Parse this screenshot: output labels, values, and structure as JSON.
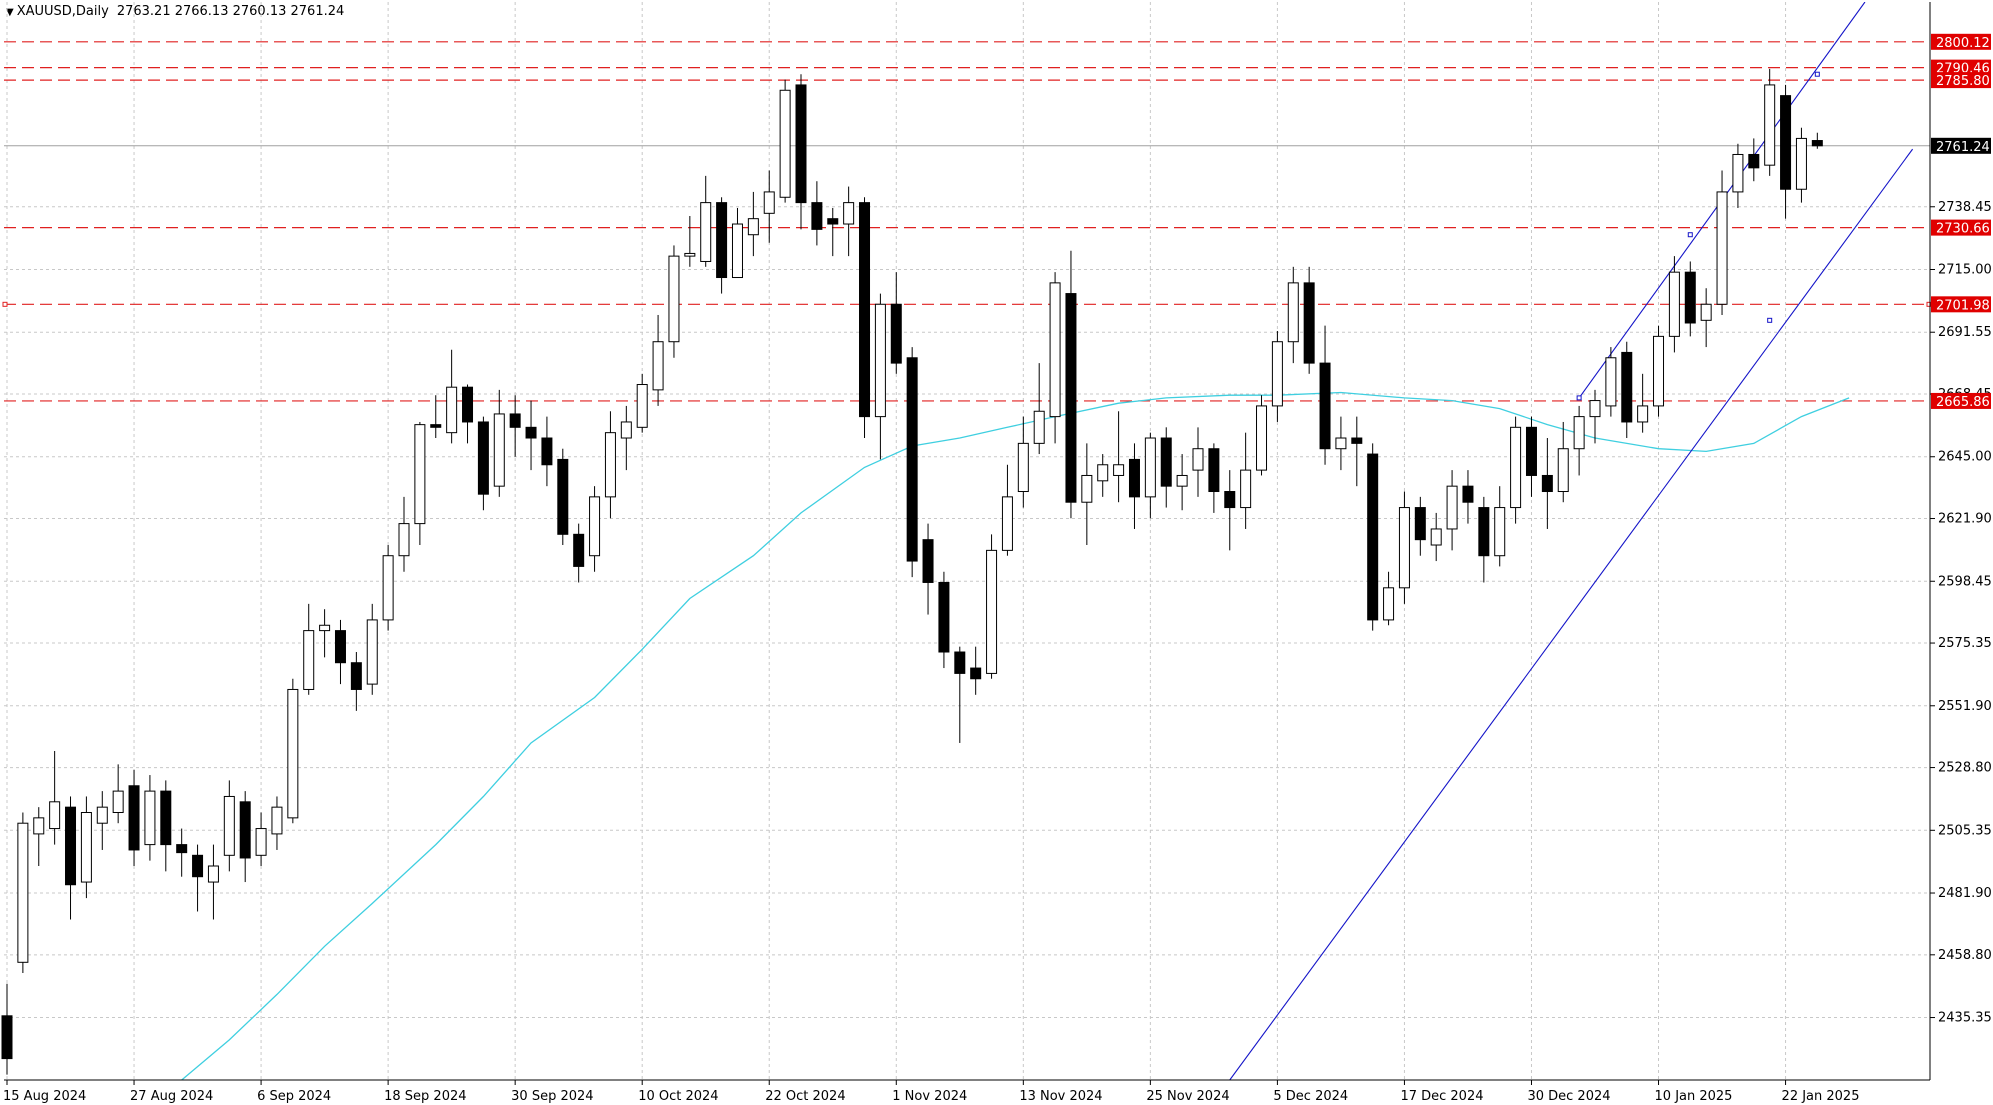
{
  "header": {
    "menu_icon": "triangle-down-icon",
    "symbol_timeframe": "XAUUSD,Daily",
    "ohlc": "2763.21 2766.13 2760.13 2761.24"
  },
  "colors": {
    "background": "#ffffff",
    "grid": "#c8c8c8",
    "bull_body": "#ffffff",
    "bear_body": "#000000",
    "candle_outline": "#000000",
    "moving_average": "#3fcfe0",
    "channel": "#1414c8",
    "level_line": "#e02020",
    "level_label_bg": "#e00000",
    "current_price_bg": "#000000"
  },
  "chart_data": {
    "type": "candlestick",
    "symbol": "XAUUSD",
    "timeframe": "Daily",
    "ylim": [
      2412,
      2815
    ],
    "y_ticks": [
      "2435.35",
      "2458.80",
      "2481.90",
      "2505.35",
      "2528.80",
      "2551.90",
      "2575.35",
      "2598.45",
      "2621.90",
      "2645.00",
      "2668.45",
      "2691.55",
      "2715.00",
      "2738.45"
    ],
    "x_ticks": [
      {
        "label": "15 Aug 2024",
        "index": 0
      },
      {
        "label": "27 Aug 2024",
        "index": 8
      },
      {
        "label": "6 Sep 2024",
        "index": 16
      },
      {
        "label": "18 Sep 2024",
        "index": 24
      },
      {
        "label": "30 Sep 2024",
        "index": 32
      },
      {
        "label": "10 Oct 2024",
        "index": 40
      },
      {
        "label": "22 Oct 2024",
        "index": 48
      },
      {
        "label": "1 Nov 2024",
        "index": 56
      },
      {
        "label": "13 Nov 2024",
        "index": 64
      },
      {
        "label": "25 Nov 2024",
        "index": 72
      },
      {
        "label": "5 Dec 2024",
        "index": 80
      },
      {
        "label": "17 Dec 2024",
        "index": 88
      },
      {
        "label": "30 Dec 2024",
        "index": 96
      },
      {
        "label": "10 Jan 2025",
        "index": 104
      },
      {
        "label": "22 Jan 2025",
        "index": 112
      }
    ],
    "current_price": 2761.24,
    "levels": [
      {
        "label": "2800.12",
        "value": 2800.12
      },
      {
        "label": "2790.46",
        "value": 2790.46
      },
      {
        "label": "2785.80",
        "value": 2785.8
      },
      {
        "label": "2730.66",
        "value": 2730.66
      },
      {
        "label": "2701.98",
        "value": 2701.98
      },
      {
        "label": "2665.86",
        "value": 2665.86
      }
    ],
    "channel": {
      "lower": {
        "from": [
          77,
          2412
        ],
        "to": [
          120,
          2760
        ]
      },
      "upper": {
        "from": [
          99,
          2667
        ],
        "to": [
          117,
          2815
        ]
      },
      "anchors": [
        [
          99,
          2667
        ],
        [
          106,
          2728
        ],
        [
          111,
          2696
        ],
        [
          114,
          2788
        ]
      ]
    },
    "moving_average": [
      [
        11,
        2412
      ],
      [
        14,
        2427
      ],
      [
        17,
        2444
      ],
      [
        20,
        2462
      ],
      [
        23,
        2478
      ],
      [
        27,
        2500
      ],
      [
        30,
        2518
      ],
      [
        33,
        2538
      ],
      [
        37,
        2555
      ],
      [
        40,
        2573
      ],
      [
        43,
        2592
      ],
      [
        47,
        2608
      ],
      [
        50,
        2624
      ],
      [
        54,
        2641
      ],
      [
        57,
        2649
      ],
      [
        60,
        2652
      ],
      [
        63,
        2656
      ],
      [
        66,
        2660
      ],
      [
        70,
        2665
      ],
      [
        73,
        2667
      ],
      [
        77,
        2668
      ],
      [
        80,
        2668
      ],
      [
        84,
        2669
      ],
      [
        88,
        2667
      ],
      [
        91,
        2666
      ],
      [
        94,
        2663
      ],
      [
        97,
        2657
      ],
      [
        100,
        2652
      ],
      [
        104,
        2648
      ],
      [
        107,
        2647
      ],
      [
        110,
        2650
      ],
      [
        113,
        2660
      ],
      [
        116,
        2667
      ]
    ],
    "candles": [
      [
        2436,
        2420,
        2448,
        2414
      ],
      [
        2456,
        2508,
        2512,
        2452
      ],
      [
        2504,
        2510,
        2514,
        2492
      ],
      [
        2506,
        2516,
        2535,
        2500
      ],
      [
        2514,
        2485,
        2518,
        2472
      ],
      [
        2486,
        2512,
        2518,
        2480
      ],
      [
        2508,
        2514,
        2520,
        2498
      ],
      [
        2512,
        2520,
        2530,
        2508
      ],
      [
        2522,
        2498,
        2528,
        2492
      ],
      [
        2500,
        2520,
        2526,
        2494
      ],
      [
        2520,
        2500,
        2524,
        2490
      ],
      [
        2500,
        2497,
        2506,
        2488
      ],
      [
        2496,
        2488,
        2500,
        2475
      ],
      [
        2486,
        2492,
        2500,
        2472
      ],
      [
        2496,
        2518,
        2524,
        2490
      ],
      [
        2516,
        2495,
        2520,
        2486
      ],
      [
        2496,
        2506,
        2512,
        2492
      ],
      [
        2504,
        2514,
        2518,
        2498
      ],
      [
        2510,
        2558,
        2562,
        2508
      ],
      [
        2558,
        2580,
        2590,
        2556
      ],
      [
        2580,
        2582,
        2588,
        2570
      ],
      [
        2580,
        2568,
        2584,
        2560
      ],
      [
        2568,
        2558,
        2572,
        2550
      ],
      [
        2560,
        2584,
        2590,
        2556
      ],
      [
        2584,
        2608,
        2612,
        2580
      ],
      [
        2608,
        2620,
        2630,
        2602
      ],
      [
        2620,
        2657,
        2658,
        2612
      ],
      [
        2657,
        2656,
        2668,
        2652
      ],
      [
        2654,
        2671,
        2685,
        2650
      ],
      [
        2671,
        2658,
        2672,
        2650
      ],
      [
        2658,
        2631,
        2660,
        2625
      ],
      [
        2634,
        2661,
        2670,
        2630
      ],
      [
        2661,
        2656,
        2668,
        2645
      ],
      [
        2656,
        2652,
        2666,
        2640
      ],
      [
        2652,
        2642,
        2660,
        2634
      ],
      [
        2644,
        2616,
        2648,
        2612
      ],
      [
        2616,
        2604,
        2620,
        2598
      ],
      [
        2608,
        2630,
        2634,
        2602
      ],
      [
        2630,
        2654,
        2662,
        2622
      ],
      [
        2652,
        2658,
        2664,
        2640
      ],
      [
        2656,
        2672,
        2676,
        2654
      ],
      [
        2670,
        2688,
        2698,
        2664
      ],
      [
        2688,
        2720,
        2724,
        2682
      ],
      [
        2720,
        2721,
        2735,
        2716
      ],
      [
        2718,
        2740,
        2750,
        2716
      ],
      [
        2740,
        2712,
        2742,
        2706
      ],
      [
        2712,
        2732,
        2738,
        2712
      ],
      [
        2728,
        2734,
        2744,
        2720
      ],
      [
        2736,
        2744,
        2752,
        2725
      ],
      [
        2742,
        2782,
        2786,
        2740
      ],
      [
        2784,
        2740,
        2788,
        2730
      ],
      [
        2740,
        2730,
        2748,
        2724
      ],
      [
        2734,
        2732,
        2738,
        2720
      ],
      [
        2732,
        2740,
        2746,
        2720
      ],
      [
        2740,
        2660,
        2742,
        2652
      ],
      [
        2660,
        2702,
        2706,
        2644
      ],
      [
        2702,
        2680,
        2714,
        2676
      ],
      [
        2682,
        2606,
        2686,
        2600
      ],
      [
        2614,
        2598,
        2620,
        2586
      ],
      [
        2598,
        2572,
        2602,
        2566
      ],
      [
        2572,
        2564,
        2574,
        2538
      ],
      [
        2566,
        2562,
        2574,
        2556
      ],
      [
        2564,
        2610,
        2616,
        2562
      ],
      [
        2610,
        2630,
        2642,
        2608
      ],
      [
        2632,
        2650,
        2660,
        2626
      ],
      [
        2650,
        2662,
        2680,
        2646
      ],
      [
        2660,
        2710,
        2714,
        2650
      ],
      [
        2706,
        2628,
        2722,
        2622
      ],
      [
        2628,
        2638,
        2650,
        2612
      ],
      [
        2636,
        2642,
        2646,
        2630
      ],
      [
        2638,
        2642,
        2662,
        2628
      ],
      [
        2644,
        2630,
        2650,
        2618
      ],
      [
        2630,
        2652,
        2654,
        2622
      ],
      [
        2652,
        2634,
        2656,
        2626
      ],
      [
        2634,
        2638,
        2646,
        2625
      ],
      [
        2640,
        2648,
        2656,
        2630
      ],
      [
        2648,
        2632,
        2650,
        2624
      ],
      [
        2632,
        2626,
        2640,
        2610
      ],
      [
        2626,
        2640,
        2654,
        2618
      ],
      [
        2640,
        2664,
        2668,
        2638
      ],
      [
        2664,
        2688,
        2692,
        2658
      ],
      [
        2688,
        2710,
        2716,
        2680
      ],
      [
        2710,
        2680,
        2716,
        2676
      ],
      [
        2680,
        2648,
        2694,
        2642
      ],
      [
        2648,
        2652,
        2660,
        2640
      ],
      [
        2652,
        2650,
        2660,
        2634
      ],
      [
        2646,
        2584,
        2650,
        2580
      ],
      [
        2584,
        2596,
        2602,
        2582
      ],
      [
        2596,
        2626,
        2632,
        2590
      ],
      [
        2626,
        2614,
        2630,
        2608
      ],
      [
        2612,
        2618,
        2624,
        2606
      ],
      [
        2618,
        2634,
        2640,
        2610
      ],
      [
        2634,
        2628,
        2640,
        2620
      ],
      [
        2626,
        2608,
        2630,
        2598
      ],
      [
        2608,
        2626,
        2634,
        2604
      ],
      [
        2626,
        2656,
        2660,
        2620
      ],
      [
        2656,
        2638,
        2660,
        2630
      ],
      [
        2638,
        2632,
        2652,
        2618
      ],
      [
        2632,
        2648,
        2658,
        2628
      ],
      [
        2648,
        2660,
        2664,
        2638
      ],
      [
        2660,
        2666,
        2670,
        2650
      ],
      [
        2664,
        2682,
        2686,
        2660
      ],
      [
        2684,
        2658,
        2688,
        2652
      ],
      [
        2658,
        2664,
        2676,
        2654
      ],
      [
        2664,
        2690,
        2694,
        2660
      ],
      [
        2690,
        2714,
        2720,
        2684
      ],
      [
        2714,
        2695,
        2718,
        2690
      ],
      [
        2696,
        2702,
        2708,
        2686
      ],
      [
        2702,
        2744,
        2752,
        2698
      ],
      [
        2744,
        2758,
        2762,
        2738
      ],
      [
        2758,
        2753,
        2764,
        2748
      ],
      [
        2754,
        2784,
        2790,
        2750
      ],
      [
        2780,
        2745,
        2784,
        2734
      ],
      [
        2745,
        2764,
        2768,
        2740
      ],
      [
        2763.21,
        2761.24,
        2766.13,
        2760.13
      ]
    ]
  }
}
